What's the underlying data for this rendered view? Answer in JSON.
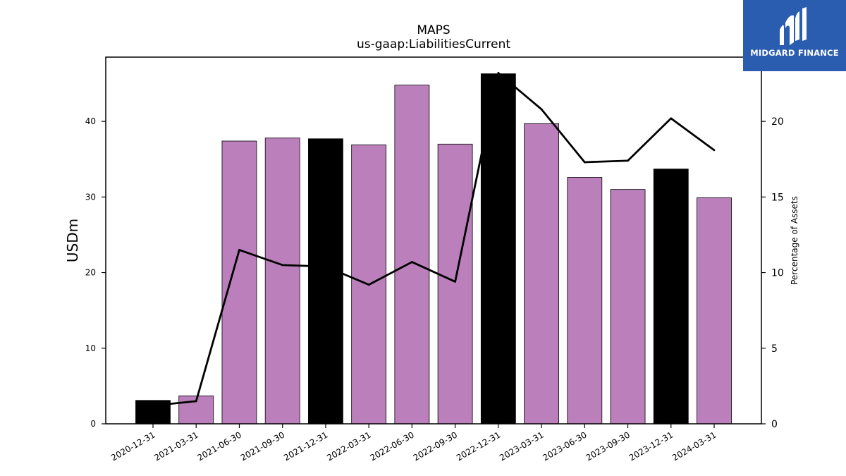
{
  "logo": {
    "text": "MIDGARD FINANCE",
    "icon": "midgard-logo-icon"
  },
  "chart_data": {
    "type": "bar",
    "title": "MAPS",
    "subtitle": "us-gaap:LiabilitiesCurrent",
    "ylabel": "USDm",
    "y2label": "Percentage of Assets",
    "ylim": [
      0,
      48.5
    ],
    "y2lim": [
      0,
      24.25
    ],
    "yticks": [
      0,
      10,
      20,
      30,
      40
    ],
    "y2ticks": [
      0,
      5,
      10,
      15,
      20
    ],
    "categories": [
      "2020-12-31",
      "2021-03-31",
      "2021-06-30",
      "2021-09-30",
      "2021-12-31",
      "2022-03-31",
      "2022-06-30",
      "2022-09-30",
      "2022-12-31",
      "2023-03-31",
      "2023-06-30",
      "2023-09-30",
      "2023-12-31",
      "2024-03-31"
    ],
    "series": [
      {
        "type": "bar",
        "axis": "left",
        "values": [
          3.1,
          3.7,
          37.4,
          37.8,
          37.7,
          36.9,
          44.8,
          37.0,
          46.3,
          39.7,
          32.6,
          31.0,
          33.7,
          29.9
        ],
        "colors": [
          "#000000",
          "#bb80bb",
          "#bb80bb",
          "#bb80bb",
          "#000000",
          "#bb80bb",
          "#bb80bb",
          "#bb80bb",
          "#000000",
          "#bb80bb",
          "#bb80bb",
          "#bb80bb",
          "#000000",
          "#bb80bb"
        ]
      },
      {
        "type": "line",
        "axis": "right",
        "color": "#000000",
        "values": [
          1.2,
          1.5,
          11.5,
          10.5,
          10.4,
          9.2,
          10.7,
          9.4,
          23.2,
          20.8,
          17.3,
          17.4,
          20.2,
          18.1
        ]
      }
    ],
    "grid": false,
    "legend": "none"
  }
}
